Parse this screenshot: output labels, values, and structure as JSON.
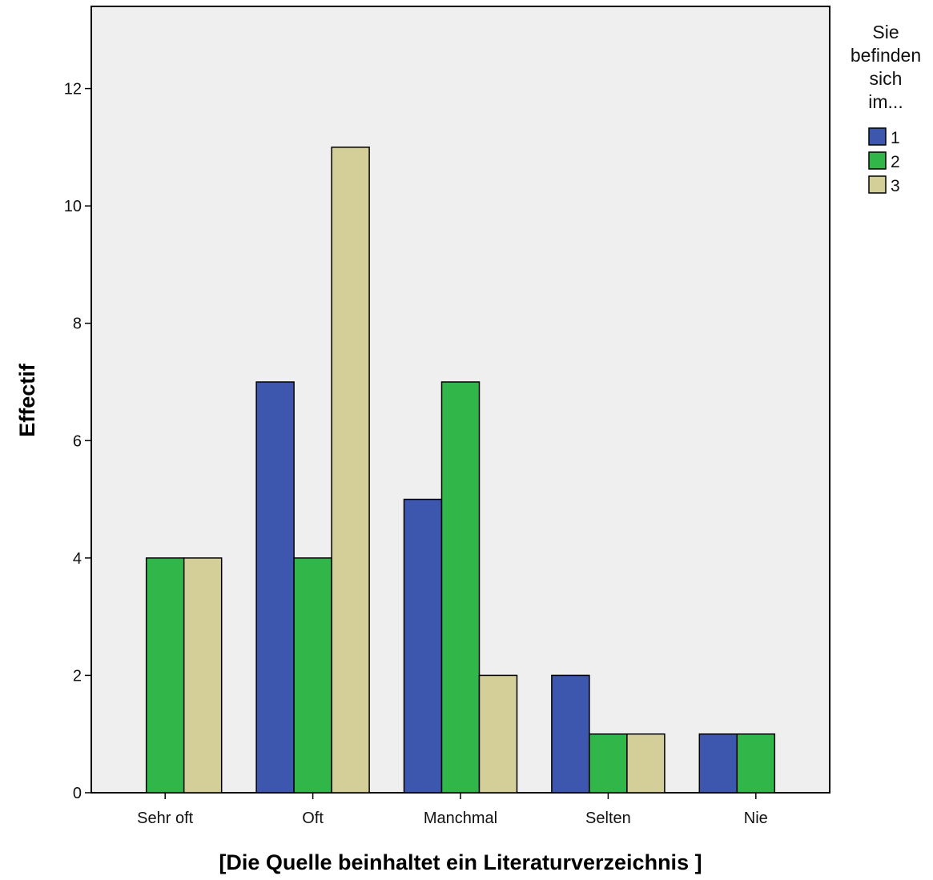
{
  "chart_data": {
    "type": "bar",
    "title": "",
    "xlabel": "[Die Quelle beinhaltet ein Literaturverzeichnis ]",
    "ylabel": "Effectif",
    "categories": [
      "Sehr oft",
      "Oft",
      "Manchmal",
      "Selten",
      "Nie"
    ],
    "series": [
      {
        "name": "1",
        "values": [
          0,
          7,
          5,
          2,
          1
        ],
        "color": "#3d56ae"
      },
      {
        "name": "2",
        "values": [
          4,
          4,
          7,
          1,
          1
        ],
        "color": "#31b64a"
      },
      {
        "name": "3",
        "values": [
          4,
          11,
          2,
          1,
          0
        ],
        "color": "#d4cf98"
      }
    ],
    "ylim": [
      0,
      13.4
    ],
    "yticks": [
      0,
      2,
      4,
      6,
      8,
      10,
      12
    ],
    "grid": false,
    "plot_background": "#efefef",
    "legend": {
      "title_lines": [
        "Sie",
        "befinden",
        "sich",
        "im..."
      ],
      "placement": "right-top"
    }
  }
}
